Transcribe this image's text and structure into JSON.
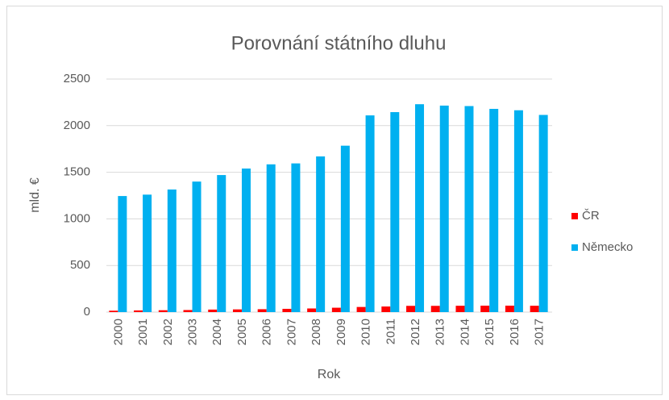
{
  "chart_data": {
    "type": "bar",
    "title": "Porovnání státního dluhu",
    "x_label": "Rok",
    "y_label": "mld. €",
    "categories": [
      "2000",
      "2001",
      "2002",
      "2003",
      "2004",
      "2005",
      "2006",
      "2007",
      "2008",
      "2009",
      "2010",
      "2011",
      "2012",
      "2013",
      "2014",
      "2015",
      "2016",
      "2017"
    ],
    "series": [
      {
        "name": "ČR",
        "color": "#ff0000",
        "values": [
          15,
          18,
          20,
          22,
          27,
          29,
          31,
          35,
          39,
          47,
          55,
          60,
          67,
          67,
          68,
          69,
          69,
          68
        ]
      },
      {
        "name": "Německo",
        "color": "#00b0f0",
        "values": [
          1245,
          1260,
          1315,
          1400,
          1470,
          1540,
          1585,
          1595,
          1670,
          1785,
          2110,
          2145,
          2230,
          2215,
          2210,
          2180,
          2165,
          2115
        ]
      }
    ],
    "ylim": [
      0,
      2500
    ],
    "yticks": [
      0,
      500,
      1000,
      1500,
      2000,
      2500
    ],
    "grid": true,
    "legend": "right"
  }
}
